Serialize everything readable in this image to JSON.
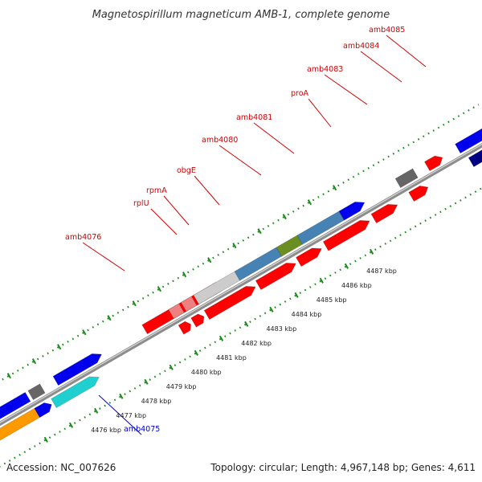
{
  "title": "Magnetospirillum magneticum AMB-1, complete genome",
  "accession_text": "Accession: NC_007626",
  "summary_text": "Topology: circular; Length: 4,967,148 bp; Genes: 4,611",
  "colors": {
    "backbone": "#8c8c8c",
    "ruler": "#1a8a1a",
    "forward_label": "#d40000",
    "reverse_label": "#0000cc",
    "red": "#ff0000",
    "pink": "#f08080",
    "blue": "#0000ee",
    "steelblue": "#4682b4",
    "olive": "#6b8e23",
    "silver": "#cccccc",
    "darkgray": "#666666",
    "cyan": "#20d0d0",
    "orange": "#ff9900",
    "navy": "#000080"
  },
  "kbp_labels": [
    "4476 kbp",
    "4477 kbp",
    "4478 kbp",
    "4479 kbp",
    "4480 kbp",
    "4481 kbp",
    "4482 kbp",
    "4483 kbp",
    "4484 kbp",
    "4485 kbp",
    "4486 kbp",
    "4487 kbp"
  ],
  "gene_labels": [
    {
      "name": "amb4076",
      "strand": "forward"
    },
    {
      "name": "rplU",
      "strand": "forward"
    },
    {
      "name": "rpmA",
      "strand": "forward"
    },
    {
      "name": "obgE",
      "strand": "forward"
    },
    {
      "name": "amb4080",
      "strand": "forward"
    },
    {
      "name": "amb4081",
      "strand": "forward"
    },
    {
      "name": "proA",
      "strand": "forward"
    },
    {
      "name": "amb4083",
      "strand": "forward"
    },
    {
      "name": "amb4084",
      "strand": "forward"
    },
    {
      "name": "amb4085",
      "strand": "forward"
    },
    {
      "name": "amb4075",
      "strand": "reverse"
    }
  ]
}
